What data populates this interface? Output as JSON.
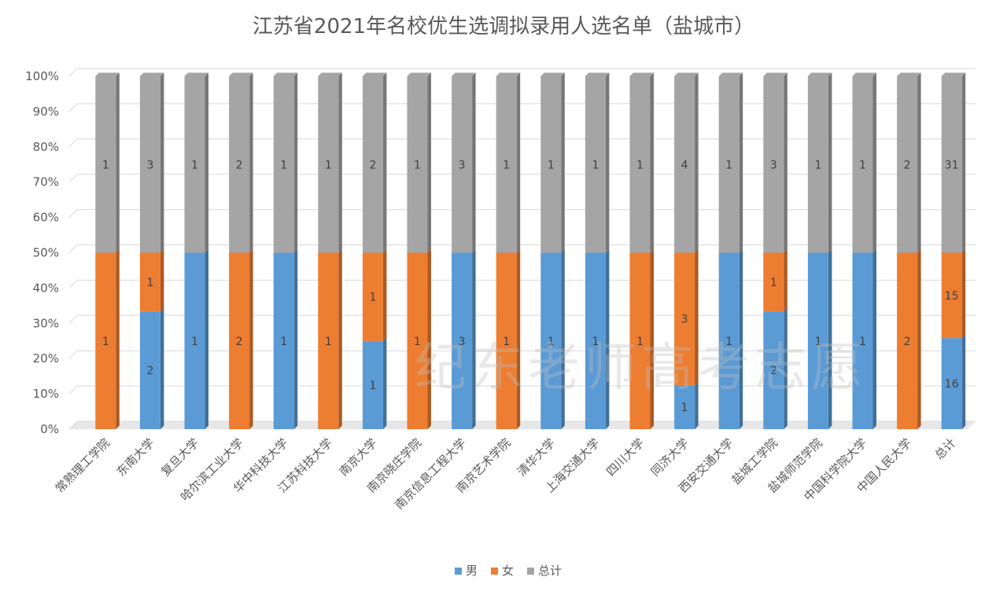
{
  "chart_data": {
    "type": "bar",
    "stacked": "percent",
    "title": "江苏省2021年名校优生选调拟录用人选名单（盐城市）",
    "categories": [
      "常熟理工学院",
      "东南大学",
      "复旦大学",
      "哈尔滨工业大学",
      "华中科技大学",
      "江苏科技大学",
      "南京大学",
      "南京晓庄学院",
      "南京信息工程大学",
      "南京艺术学院",
      "清华大学",
      "上海交通大学",
      "四川大学",
      "同济大学",
      "西安交通大学",
      "盐城工学院",
      "盐城师范学院",
      "中国科学院大学",
      "中国人民大学",
      "总计"
    ],
    "series": [
      {
        "name": "男",
        "color": "#5b9bd5",
        "values": [
          0,
          2,
          1,
          0,
          1,
          0,
          1,
          0,
          3,
          0,
          1,
          1,
          0,
          1,
          1,
          2,
          1,
          1,
          0,
          16
        ]
      },
      {
        "name": "女",
        "color": "#ed7d31",
        "values": [
          1,
          1,
          0,
          2,
          0,
          1,
          1,
          1,
          0,
          1,
          0,
          0,
          1,
          3,
          0,
          1,
          0,
          0,
          2,
          15
        ]
      },
      {
        "name": "总计",
        "color": "#a5a5a5",
        "values": [
          1,
          3,
          1,
          2,
          1,
          1,
          2,
          1,
          3,
          1,
          1,
          1,
          1,
          4,
          1,
          3,
          1,
          1,
          2,
          31
        ]
      }
    ],
    "y_ticks": [
      "0%",
      "10%",
      "20%",
      "30%",
      "40%",
      "50%",
      "60%",
      "70%",
      "80%",
      "90%",
      "100%"
    ],
    "ylim": [
      0,
      100
    ],
    "grid": true,
    "legend": "bottom",
    "watermark": "纪东老师高考志愿"
  }
}
